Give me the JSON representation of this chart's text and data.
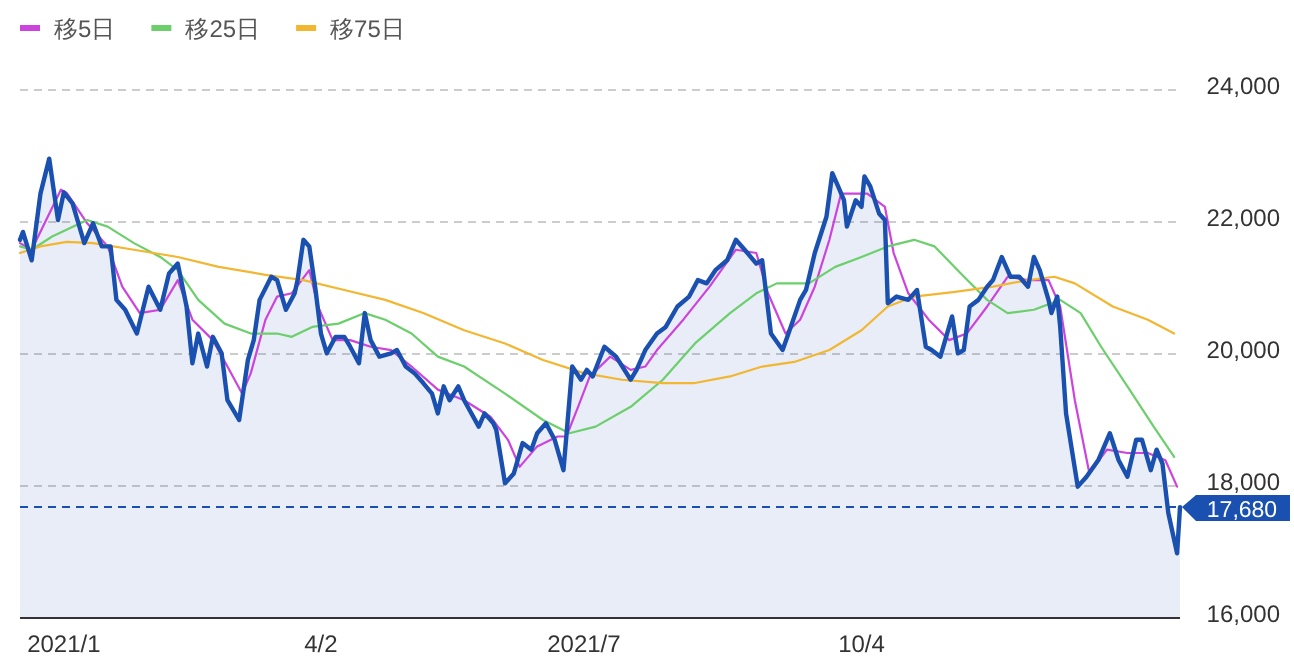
{
  "chart_data": {
    "type": "line",
    "xlim": [
      "2020-12-20",
      "2022-01-21"
    ],
    "xticks": [
      {
        "value": "2021-01-04",
        "label": "2021/1"
      },
      {
        "value": "2021-04-02",
        "label": "4/2"
      },
      {
        "value": "2021-07-01",
        "label": "2021/7"
      },
      {
        "value": "2021-10-04",
        "label": "10/4"
      }
    ],
    "ylim": [
      16000,
      24000
    ],
    "yticks": [
      {
        "value": 16000,
        "label": "16,000"
      },
      {
        "value": 18000,
        "label": "18,000"
      },
      {
        "value": 20000,
        "label": "20,000"
      },
      {
        "value": 22000,
        "label": "22,000"
      },
      {
        "value": 24000,
        "label": "24,000"
      }
    ],
    "grid": "y",
    "legend": "top left",
    "ref_lines": [
      {
        "axis": "y",
        "value": 17680,
        "label": "17,680",
        "color": "#1a50b0",
        "line_style": "dashed"
      }
    ],
    "series": [
      {
        "type": "area",
        "color": "#1a50b0",
        "x": [
          "2020-12-20",
          "2020-12-21",
          "2020-12-24",
          "2020-12-27",
          "2020-12-30",
          "2021-01-02",
          "2021-01-04",
          "2021-01-07",
          "2021-01-11",
          "2021-01-14",
          "2021-01-17",
          "2021-01-20",
          "2021-01-22",
          "2021-01-25",
          "2021-01-29",
          "2021-02-02",
          "2021-02-06",
          "2021-02-09",
          "2021-02-12",
          "2021-02-15",
          "2021-02-17",
          "2021-02-19",
          "2021-02-22",
          "2021-02-24",
          "2021-02-27",
          "2021-03-01",
          "2021-03-05",
          "2021-03-08",
          "2021-03-10",
          "2021-03-12",
          "2021-03-16",
          "2021-03-18",
          "2021-03-21",
          "2021-03-24",
          "2021-03-25",
          "2021-03-27",
          "2021-03-29",
          "2021-03-31",
          "2021-04-02",
          "2021-04-04",
          "2021-04-07",
          "2021-04-10",
          "2021-04-12",
          "2021-04-15",
          "2021-04-17",
          "2021-04-19",
          "2021-04-22",
          "2021-04-26",
          "2021-04-28",
          "2021-05-01",
          "2021-05-04",
          "2021-05-07",
          "2021-05-10",
          "2021-05-12",
          "2021-05-14",
          "2021-05-16",
          "2021-05-19",
          "2021-05-21",
          "2021-05-26",
          "2021-05-28",
          "2021-05-31",
          "2021-06-01",
          "2021-06-04",
          "2021-06-07",
          "2021-06-10",
          "2021-06-13",
          "2021-06-15",
          "2021-06-18",
          "2021-06-21",
          "2021-06-24",
          "2021-06-27",
          "2021-06-30",
          "2021-07-02",
          "2021-07-04",
          "2021-07-08",
          "2021-07-12",
          "2021-07-17",
          "2021-07-19",
          "2021-07-22",
          "2021-07-26",
          "2021-07-29",
          "2021-08-02",
          "2021-08-06",
          "2021-08-09",
          "2021-08-12",
          "2021-08-15",
          "2021-08-19",
          "2021-08-22",
          "2021-08-25",
          "2021-08-29",
          "2021-08-31",
          "2021-09-03",
          "2021-09-07",
          "2021-09-09",
          "2021-09-13",
          "2021-09-15",
          "2021-09-18",
          "2021-09-22",
          "2021-09-24",
          "2021-09-26",
          "2021-09-28",
          "2021-09-29",
          "2021-10-02",
          "2021-10-04",
          "2021-10-05",
          "2021-10-07",
          "2021-10-10",
          "2021-10-12",
          "2021-10-13",
          "2021-10-16",
          "2021-10-20",
          "2021-10-23",
          "2021-10-26",
          "2021-10-28",
          "2021-10-31",
          "2021-11-04",
          "2021-11-06",
          "2021-11-08",
          "2021-11-10",
          "2021-11-13",
          "2021-11-16",
          "2021-11-18",
          "2021-11-21",
          "2021-11-24",
          "2021-11-27",
          "2021-11-30",
          "2021-12-02",
          "2021-12-04",
          "2021-12-07",
          "2021-12-08",
          "2021-12-10",
          "2021-12-11",
          "2021-12-13",
          "2021-12-17",
          "2021-12-20",
          "2021-12-24",
          "2021-12-28",
          "2021-12-31",
          "2022-01-03",
          "2022-01-06",
          "2022-01-08",
          "2022-01-11",
          "2022-01-13",
          "2022-01-15",
          "2022-01-17",
          "2022-01-20",
          "2022-01-21"
        ],
        "values": [
          21730,
          21850,
          21420,
          22430,
          22960,
          22030,
          22450,
          22280,
          21680,
          21980,
          21630,
          21630,
          20820,
          20670,
          20310,
          21020,
          20670,
          21220,
          21370,
          20720,
          19860,
          20310,
          19810,
          20260,
          20010,
          19300,
          19000,
          19910,
          20210,
          20820,
          21170,
          21120,
          20670,
          20920,
          21120,
          21730,
          21630,
          21020,
          20310,
          20010,
          20260,
          20260,
          20110,
          19860,
          20620,
          20210,
          19960,
          20010,
          20060,
          19810,
          19710,
          19560,
          19400,
          19100,
          19510,
          19300,
          19510,
          19300,
          18900,
          19100,
          18950,
          18850,
          18040,
          18190,
          18650,
          18550,
          18800,
          18950,
          18700,
          18240,
          19810,
          19610,
          19760,
          19660,
          20110,
          19960,
          19610,
          19760,
          20060,
          20310,
          20410,
          20720,
          20870,
          21120,
          21070,
          21270,
          21420,
          21730,
          21580,
          21370,
          21420,
          20310,
          20060,
          20310,
          20820,
          20970,
          21530,
          22080,
          22740,
          22540,
          22330,
          21930,
          22330,
          22230,
          22690,
          22540,
          22130,
          22030,
          20770,
          20870,
          20820,
          20970,
          20110,
          20060,
          19960,
          20570,
          20010,
          20060,
          20720,
          20820,
          21020,
          21120,
          21470,
          21170,
          21170,
          21020,
          21470,
          21270,
          20820,
          20620,
          20870,
          20410,
          19100,
          17990,
          18140,
          18390,
          18800,
          18390,
          18140,
          18700,
          18700,
          18240,
          18550,
          18340,
          17590,
          16980,
          17680
        ]
      },
      {
        "name": "移5日",
        "color": "#cc44dd",
        "x": [
          "2020-12-20",
          "2020-12-24",
          "2021-01-03",
          "2021-01-05",
          "2021-01-12",
          "2021-01-19",
          "2021-01-24",
          "2021-01-30",
          "2021-02-06",
          "2021-02-12",
          "2021-02-17",
          "2021-02-24",
          "2021-03-01",
          "2021-03-06",
          "2021-03-09",
          "2021-03-14",
          "2021-03-18",
          "2021-03-23",
          "2021-03-29",
          "2021-04-01",
          "2021-04-06",
          "2021-04-12",
          "2021-04-19",
          "2021-04-26",
          "2021-05-03",
          "2021-05-12",
          "2021-05-21",
          "2021-05-30",
          "2021-06-05",
          "2021-06-09",
          "2021-06-15",
          "2021-06-22",
          "2021-06-25",
          "2021-06-29",
          "2021-07-03",
          "2021-07-10",
          "2021-07-17",
          "2021-07-22",
          "2021-07-26",
          "2021-08-04",
          "2021-08-13",
          "2021-08-22",
          "2021-08-29",
          "2021-09-02",
          "2021-09-08",
          "2021-09-13",
          "2021-09-18",
          "2021-09-23",
          "2021-09-27",
          "2021-10-06",
          "2021-10-12",
          "2021-10-15",
          "2021-10-20",
          "2021-10-27",
          "2021-11-03",
          "2021-11-09",
          "2021-11-16",
          "2021-11-23",
          "2021-11-30",
          "2021-12-07",
          "2021-12-11",
          "2021-12-16",
          "2021-12-21",
          "2021-12-27",
          "2022-01-03",
          "2022-01-10",
          "2022-01-16",
          "2022-01-20"
        ],
        "values": [
          21680,
          21580,
          22490,
          22440,
          21980,
          21630,
          21020,
          20620,
          20670,
          21120,
          20520,
          20210,
          19810,
          19400,
          19710,
          20520,
          20870,
          20920,
          21270,
          20720,
          20210,
          20210,
          20110,
          20060,
          19810,
          19460,
          19300,
          19050,
          18700,
          18290,
          18600,
          18750,
          18750,
          19200,
          19660,
          19960,
          19760,
          19810,
          20060,
          20520,
          21020,
          21580,
          21530,
          20920,
          20310,
          20520,
          21020,
          21730,
          22430,
          22430,
          22230,
          21530,
          20920,
          20520,
          20210,
          20310,
          20720,
          21170,
          21120,
          21120,
          20720,
          19300,
          18190,
          18550,
          18500,
          18500,
          18390,
          17990
        ]
      },
      {
        "name": "移25日",
        "color": "#6ccf6c",
        "x": [
          "2020-12-20",
          "2020-12-24",
          "2020-12-31",
          "2021-01-12",
          "2021-01-19",
          "2021-01-28",
          "2021-02-06",
          "2021-02-12",
          "2021-02-19",
          "2021-02-28",
          "2021-03-09",
          "2021-03-18",
          "2021-03-23",
          "2021-03-30",
          "2021-04-08",
          "2021-04-17",
          "2021-04-24",
          "2021-05-03",
          "2021-05-12",
          "2021-05-21",
          "2021-06-04",
          "2021-06-17",
          "2021-06-26",
          "2021-07-05",
          "2021-07-17",
          "2021-07-28",
          "2021-08-08",
          "2021-08-20",
          "2021-08-29",
          "2021-09-05",
          "2021-09-16",
          "2021-09-25",
          "2021-10-04",
          "2021-10-13",
          "2021-10-22",
          "2021-10-29",
          "2021-11-07",
          "2021-11-16",
          "2021-11-23",
          "2021-12-02",
          "2021-12-11",
          "2021-12-18",
          "2021-12-25",
          "2022-01-03",
          "2022-01-12",
          "2022-01-19"
        ],
        "values": [
          21630,
          21580,
          21780,
          22030,
          21930,
          21680,
          21470,
          21270,
          20820,
          20460,
          20310,
          20310,
          20260,
          20410,
          20460,
          20620,
          20520,
          20310,
          19960,
          19810,
          19400,
          19000,
          18800,
          18900,
          19200,
          19610,
          20160,
          20620,
          20920,
          21070,
          21070,
          21320,
          21470,
          21630,
          21730,
          21630,
          21220,
          20820,
          20620,
          20670,
          20820,
          20620,
          20110,
          19510,
          18900,
          18440
        ]
      },
      {
        "name": "移75日",
        "color": "#f2b630",
        "x": [
          "2020-12-20",
          "2020-12-27",
          "2021-01-05",
          "2021-01-14",
          "2021-01-28",
          "2021-02-12",
          "2021-02-26",
          "2021-03-14",
          "2021-03-27",
          "2021-04-10",
          "2021-04-24",
          "2021-05-07",
          "2021-05-21",
          "2021-06-04",
          "2021-06-17",
          "2021-07-01",
          "2021-07-14",
          "2021-07-28",
          "2021-08-08",
          "2021-08-20",
          "2021-08-31",
          "2021-09-11",
          "2021-09-23",
          "2021-10-04",
          "2021-10-13",
          "2021-10-22",
          "2021-11-05",
          "2021-11-18",
          "2021-11-30",
          "2021-12-09",
          "2021-12-16",
          "2021-12-29",
          "2022-01-10",
          "2022-01-19"
        ],
        "values": [
          21530,
          21630,
          21700,
          21680,
          21580,
          21470,
          21320,
          21200,
          21120,
          20970,
          20820,
          20620,
          20360,
          20160,
          19910,
          19710,
          19610,
          19560,
          19560,
          19660,
          19810,
          19880,
          20060,
          20360,
          20720,
          20870,
          20940,
          21020,
          21120,
          21170,
          21070,
          20720,
          20520,
          20310
        ]
      }
    ]
  }
}
